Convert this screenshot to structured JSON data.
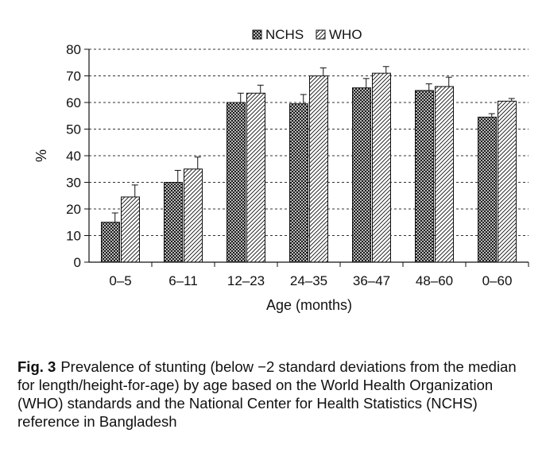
{
  "chart_data": {
    "type": "bar",
    "categories": [
      "0–5",
      "6–11",
      "12–23",
      "24–35",
      "36–47",
      "48–60",
      "0–60"
    ],
    "series": [
      {
        "name": "NCHS",
        "values": [
          15,
          30,
          60,
          59.5,
          65.5,
          64.5,
          54.5
        ],
        "errors": [
          3.5,
          4.5,
          3.5,
          3.5,
          3.5,
          2.5,
          1.3
        ]
      },
      {
        "name": "WHO",
        "values": [
          24.5,
          35,
          63.5,
          70,
          71,
          66,
          60.5
        ],
        "errors": [
          4.5,
          4.5,
          3,
          3,
          2.5,
          3.5,
          1
        ]
      }
    ],
    "xlabel": "Age (months)",
    "ylabel": "%",
    "ylim": [
      0,
      80
    ],
    "yticks": [
      "0",
      "10",
      "20",
      "30",
      "40",
      "50",
      "60",
      "70",
      "80"
    ],
    "grid": "dashed horizontal",
    "legend": "top-center",
    "series_patterns": {
      "NCHS": "cross-hatch",
      "WHO": "diagonal-hatch"
    }
  },
  "caption": {
    "label": "Fig. 3",
    "text": "Prevalence of stunting (below −2 standard deviations from the median for length/height-for-age) by age based on the World Health Organization (WHO) standards and the National Center for Health Statistics (NCHS) reference in Bangladesh"
  }
}
